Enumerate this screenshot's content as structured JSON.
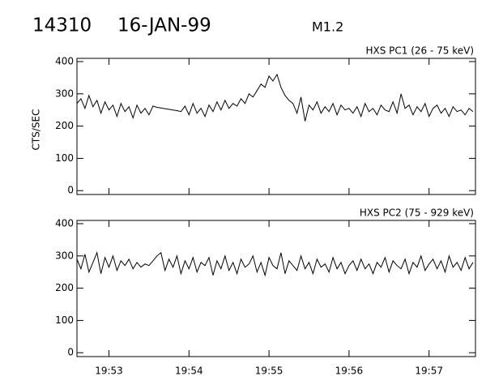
{
  "header": {
    "id": "14310",
    "date": "16-JAN-99",
    "class": "M1.2"
  },
  "chart_data": [
    {
      "type": "line",
      "ylabel": "CTS/SEC",
      "xlim": [
        1192.6,
        1197.58
      ],
      "xticks": [
        1193,
        1194,
        1195,
        1196,
        1197
      ],
      "ylim": [
        -12,
        410
      ],
      "yticks": [
        0,
        100,
        200,
        300,
        400
      ],
      "x": [
        1192.6,
        1192.65,
        1192.7,
        1192.75,
        1192.8,
        1192.85,
        1192.9,
        1192.95,
        1193,
        1193.05,
        1193.1,
        1193.15,
        1193.2,
        1193.25,
        1193.3,
        1193.35,
        1193.4,
        1193.45,
        1193.5,
        1193.55,
        1193.6,
        1193.65,
        1193.7,
        1193.75,
        1193.8,
        1193.85,
        1193.9,
        1193.95,
        1194,
        1194.05,
        1194.1,
        1194.15,
        1194.2,
        1194.25,
        1194.3,
        1194.35,
        1194.4,
        1194.45,
        1194.5,
        1194.55,
        1194.6,
        1194.65,
        1194.7,
        1194.75,
        1194.8,
        1194.85,
        1194.9,
        1194.95,
        1195,
        1195.05,
        1195.1,
        1195.15,
        1195.2,
        1195.25,
        1195.3,
        1195.35,
        1195.4,
        1195.45,
        1195.5,
        1195.55,
        1195.6,
        1195.65,
        1195.7,
        1195.75,
        1195.8,
        1195.85,
        1195.9,
        1195.95,
        1196,
        1196.05,
        1196.1,
        1196.15,
        1196.2,
        1196.25,
        1196.3,
        1196.35,
        1196.4,
        1196.45,
        1196.5,
        1196.55,
        1196.6,
        1196.65,
        1196.7,
        1196.75,
        1196.8,
        1196.85,
        1196.9,
        1196.95,
        1197,
        1197.05,
        1197.1,
        1197.15,
        1197.2,
        1197.25,
        1197.3,
        1197.35,
        1197.4,
        1197.45,
        1197.5,
        1197.55
      ],
      "series": [
        {
          "name": "HXS PC1 (26 - 75 keV)",
          "color": "#000000",
          "values": [
            270,
            285,
            255,
            295,
            260,
            280,
            240,
            275,
            250,
            265,
            230,
            270,
            245,
            260,
            225,
            265,
            240,
            255,
            235,
            262,
            258,
            256,
            254,
            252,
            250,
            248,
            245,
            262,
            235,
            270,
            240,
            255,
            230,
            265,
            245,
            275,
            250,
            280,
            255,
            270,
            262,
            285,
            270,
            300,
            290,
            310,
            330,
            320,
            355,
            340,
            360,
            320,
            295,
            280,
            270,
            240,
            290,
            215,
            265,
            250,
            275,
            240,
            260,
            245,
            270,
            235,
            265,
            250,
            255,
            240,
            260,
            230,
            270,
            245,
            255,
            235,
            265,
            250,
            245,
            275,
            240,
            300,
            255,
            265,
            235,
            260,
            245,
            270,
            230,
            255,
            265,
            240,
            255,
            230,
            260,
            245,
            250,
            235,
            255,
            245
          ]
        }
      ]
    },
    {
      "type": "line",
      "xlim": [
        1192.6,
        1197.58
      ],
      "xticks": [
        {
          "value": 1193,
          "label": "19:53"
        },
        {
          "value": 1194,
          "label": "19:54"
        },
        {
          "value": 1195,
          "label": "19:55"
        },
        {
          "value": 1196,
          "label": "19:56"
        },
        {
          "value": 1197,
          "label": "19:57"
        }
      ],
      "ylim": [
        -12,
        410
      ],
      "yticks": [
        0,
        100,
        200,
        300,
        400
      ],
      "x": [
        1192.6,
        1192.65,
        1192.7,
        1192.75,
        1192.8,
        1192.85,
        1192.9,
        1192.95,
        1193,
        1193.05,
        1193.1,
        1193.15,
        1193.2,
        1193.25,
        1193.3,
        1193.35,
        1193.4,
        1193.45,
        1193.5,
        1193.55,
        1193.6,
        1193.65,
        1193.7,
        1193.75,
        1193.8,
        1193.85,
        1193.9,
        1193.95,
        1194,
        1194.05,
        1194.1,
        1194.15,
        1194.2,
        1194.25,
        1194.3,
        1194.35,
        1194.4,
        1194.45,
        1194.5,
        1194.55,
        1194.6,
        1194.65,
        1194.7,
        1194.75,
        1194.8,
        1194.85,
        1194.9,
        1194.95,
        1195,
        1195.05,
        1195.1,
        1195.15,
        1195.2,
        1195.25,
        1195.3,
        1195.35,
        1195.4,
        1195.45,
        1195.5,
        1195.55,
        1195.6,
        1195.65,
        1195.7,
        1195.75,
        1195.8,
        1195.85,
        1195.9,
        1195.95,
        1196,
        1196.05,
        1196.1,
        1196.15,
        1196.2,
        1196.25,
        1196.3,
        1196.35,
        1196.4,
        1196.45,
        1196.5,
        1196.55,
        1196.6,
        1196.65,
        1196.7,
        1196.75,
        1196.8,
        1196.85,
        1196.9,
        1196.95,
        1197,
        1197.05,
        1197.1,
        1197.15,
        1197.2,
        1197.25,
        1197.3,
        1197.35,
        1197.4,
        1197.45,
        1197.5,
        1197.55
      ],
      "series": [
        {
          "name": "HXS PC2 (75 - 929 keV)",
          "color": "#000000",
          "values": [
            290,
            260,
            305,
            250,
            280,
            310,
            245,
            295,
            265,
            300,
            255,
            285,
            270,
            290,
            260,
            280,
            265,
            275,
            270,
            285,
            300,
            310,
            255,
            290,
            265,
            300,
            245,
            285,
            260,
            295,
            250,
            280,
            270,
            295,
            240,
            285,
            260,
            300,
            255,
            280,
            245,
            290,
            265,
            275,
            300,
            250,
            280,
            240,
            295,
            270,
            260,
            310,
            245,
            285,
            270,
            255,
            300,
            260,
            280,
            245,
            290,
            265,
            275,
            250,
            295,
            260,
            280,
            245,
            270,
            285,
            255,
            290,
            260,
            275,
            245,
            280,
            265,
            295,
            250,
            285,
            270,
            260,
            290,
            245,
            280,
            265,
            300,
            255,
            275,
            290,
            260,
            285,
            250,
            300,
            265,
            280,
            255,
            295,
            260,
            280
          ]
        }
      ]
    }
  ]
}
